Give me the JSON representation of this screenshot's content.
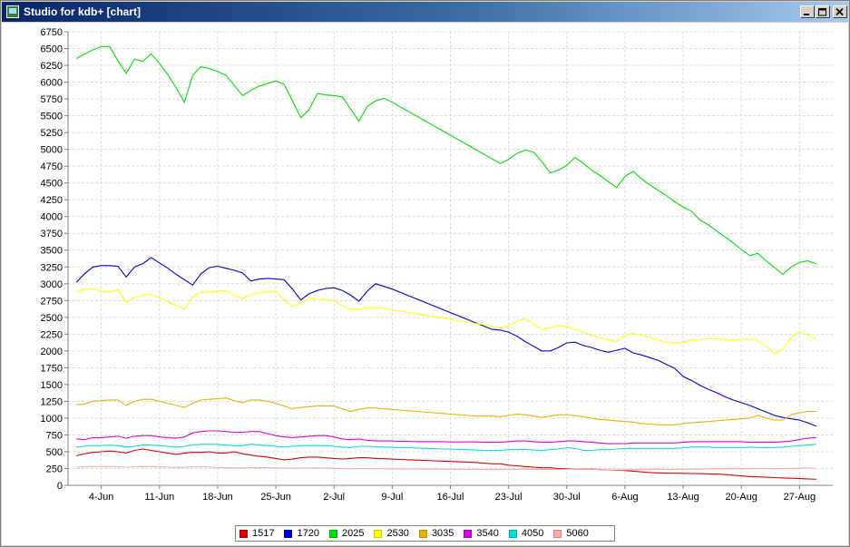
{
  "window": {
    "title": "Studio for kdb+ [chart]",
    "controls": {
      "minimize": "minimize-icon",
      "maximize": "maximize-icon",
      "close": "close-icon"
    }
  },
  "chart_data": {
    "type": "line",
    "title": "",
    "xlabel": "",
    "ylabel": "",
    "grid": true,
    "legend_position": "bottom",
    "ylim": [
      0,
      6750
    ],
    "y_ticks": [
      0,
      250,
      500,
      750,
      1000,
      1250,
      1500,
      1750,
      2000,
      2250,
      2500,
      2750,
      3000,
      3250,
      3500,
      3750,
      4000,
      4250,
      4500,
      4750,
      5000,
      5250,
      5500,
      5750,
      6000,
      6250,
      6500,
      6750
    ],
    "x_start": "2023-05-31",
    "x_end": "2023-08-31",
    "x_ticks": [
      {
        "date": "2023-06-04",
        "label": "4-Jun"
      },
      {
        "date": "2023-06-11",
        "label": "11-Jun"
      },
      {
        "date": "2023-06-18",
        "label": "18-Jun"
      },
      {
        "date": "2023-06-25",
        "label": "25-Jun"
      },
      {
        "date": "2023-07-02",
        "label": "2-Jul"
      },
      {
        "date": "2023-07-09",
        "label": "9-Jul"
      },
      {
        "date": "2023-07-16",
        "label": "16-Jul"
      },
      {
        "date": "2023-07-23",
        "label": "23-Jul"
      },
      {
        "date": "2023-07-30",
        "label": "30-Jul"
      },
      {
        "date": "2023-08-06",
        "label": "6-Aug"
      },
      {
        "date": "2023-08-13",
        "label": "13-Aug"
      },
      {
        "date": "2023-08-20",
        "label": "20-Aug"
      },
      {
        "date": "2023-08-27",
        "label": "27-Aug"
      }
    ],
    "x": [
      "2023-06-01",
      "2023-06-02",
      "2023-06-03",
      "2023-06-04",
      "2023-06-05",
      "2023-06-06",
      "2023-06-07",
      "2023-06-08",
      "2023-06-09",
      "2023-06-10",
      "2023-06-11",
      "2023-06-12",
      "2023-06-13",
      "2023-06-14",
      "2023-06-15",
      "2023-06-16",
      "2023-06-17",
      "2023-06-18",
      "2023-06-19",
      "2023-06-20",
      "2023-06-21",
      "2023-06-22",
      "2023-06-23",
      "2023-06-24",
      "2023-06-25",
      "2023-06-26",
      "2023-06-27",
      "2023-06-28",
      "2023-06-29",
      "2023-06-30",
      "2023-07-01",
      "2023-07-02",
      "2023-07-03",
      "2023-07-04",
      "2023-07-05",
      "2023-07-06",
      "2023-07-07",
      "2023-07-08",
      "2023-07-09",
      "2023-07-10",
      "2023-07-11",
      "2023-07-12",
      "2023-07-13",
      "2023-07-14",
      "2023-07-15",
      "2023-07-16",
      "2023-07-17",
      "2023-07-18",
      "2023-07-19",
      "2023-07-20",
      "2023-07-21",
      "2023-07-22",
      "2023-07-23",
      "2023-07-24",
      "2023-07-25",
      "2023-07-26",
      "2023-07-27",
      "2023-07-28",
      "2023-07-29",
      "2023-07-30",
      "2023-07-31",
      "2023-08-01",
      "2023-08-02",
      "2023-08-03",
      "2023-08-04",
      "2023-08-05",
      "2023-08-06",
      "2023-08-07",
      "2023-08-08",
      "2023-08-09",
      "2023-08-10",
      "2023-08-11",
      "2023-08-12",
      "2023-08-13",
      "2023-08-14",
      "2023-08-15",
      "2023-08-16",
      "2023-08-17",
      "2023-08-18",
      "2023-08-19",
      "2023-08-20",
      "2023-08-21",
      "2023-08-22",
      "2023-08-23",
      "2023-08-24",
      "2023-08-25",
      "2023-08-26",
      "2023-08-27",
      "2023-08-28",
      "2023-08-29"
    ],
    "series": [
      {
        "name": "1517",
        "color": "#e00000",
        "values": [
          440,
          470,
          490,
          500,
          510,
          500,
          480,
          520,
          540,
          520,
          500,
          480,
          460,
          480,
          490,
          490,
          500,
          480,
          480,
          500,
          470,
          450,
          430,
          420,
          400,
          380,
          390,
          410,
          420,
          420,
          410,
          400,
          390,
          400,
          410,
          410,
          400,
          395,
          390,
          385,
          380,
          375,
          370,
          365,
          360,
          355,
          350,
          345,
          340,
          330,
          320,
          320,
          300,
          290,
          280,
          270,
          260,
          260,
          250,
          250,
          240,
          240,
          240,
          235,
          230,
          225,
          220,
          210,
          200,
          190,
          185,
          180,
          180,
          178,
          176,
          174,
          170,
          168,
          160,
          150,
          140,
          130,
          125,
          120,
          115,
          110,
          105,
          100,
          95,
          90
        ]
      },
      {
        "name": "1720",
        "color": "#0000dd",
        "values": [
          3020,
          3150,
          3250,
          3270,
          3270,
          3260,
          3100,
          3250,
          3300,
          3390,
          3310,
          3230,
          3140,
          3060,
          2980,
          3150,
          3240,
          3260,
          3230,
          3200,
          3160,
          3040,
          3070,
          3080,
          3070,
          3060,
          2920,
          2760,
          2850,
          2900,
          2930,
          2940,
          2900,
          2830,
          2740,
          2890,
          3000,
          2960,
          2920,
          2870,
          2820,
          2770,
          2720,
          2670,
          2620,
          2570,
          2520,
          2470,
          2420,
          2370,
          2320,
          2310,
          2280,
          2220,
          2140,
          2070,
          2000,
          2000,
          2050,
          2120,
          2130,
          2080,
          2050,
          2010,
          1980,
          2010,
          2040,
          1970,
          1940,
          1900,
          1860,
          1800,
          1740,
          1620,
          1560,
          1490,
          1430,
          1380,
          1320,
          1270,
          1230,
          1190,
          1140,
          1090,
          1040,
          1010,
          990,
          970,
          930,
          880
        ]
      },
      {
        "name": "2025",
        "color": "#00dd00",
        "values": [
          6350,
          6420,
          6480,
          6530,
          6530,
          6320,
          6130,
          6340,
          6310,
          6420,
          6280,
          6110,
          5920,
          5700,
          6100,
          6230,
          6200,
          6160,
          6100,
          5950,
          5800,
          5880,
          5940,
          5980,
          6020,
          5970,
          5720,
          5470,
          5590,
          5830,
          5810,
          5800,
          5780,
          5600,
          5420,
          5640,
          5720,
          5760,
          5700,
          5630,
          5560,
          5490,
          5420,
          5350,
          5280,
          5210,
          5140,
          5070,
          5000,
          4930,
          4860,
          4790,
          4850,
          4940,
          4990,
          4960,
          4820,
          4650,
          4690,
          4760,
          4880,
          4790,
          4690,
          4610,
          4520,
          4430,
          4600,
          4670,
          4560,
          4470,
          4390,
          4310,
          4220,
          4140,
          4080,
          3950,
          3880,
          3790,
          3700,
          3610,
          3510,
          3420,
          3450,
          3340,
          3240,
          3140,
          3250,
          3320,
          3340,
          3300
        ]
      },
      {
        "name": "2530",
        "color": "#ffff00",
        "values": [
          2880,
          2920,
          2920,
          2890,
          2880,
          2910,
          2720,
          2800,
          2830,
          2840,
          2790,
          2730,
          2680,
          2620,
          2800,
          2870,
          2880,
          2890,
          2900,
          2830,
          2780,
          2840,
          2870,
          2880,
          2880,
          2760,
          2650,
          2720,
          2780,
          2770,
          2770,
          2750,
          2670,
          2620,
          2620,
          2640,
          2650,
          2630,
          2610,
          2590,
          2570,
          2550,
          2530,
          2510,
          2490,
          2470,
          2450,
          2430,
          2410,
          2390,
          2370,
          2340,
          2370,
          2440,
          2480,
          2400,
          2320,
          2340,
          2380,
          2360,
          2320,
          2280,
          2230,
          2200,
          2170,
          2140,
          2240,
          2260,
          2230,
          2200,
          2160,
          2130,
          2110,
          2130,
          2170,
          2160,
          2180,
          2180,
          2170,
          2160,
          2170,
          2180,
          2150,
          2070,
          1960,
          2030,
          2200,
          2280,
          2240,
          2170
        ]
      },
      {
        "name": "3035",
        "color": "#f0b000",
        "values": [
          1200,
          1210,
          1250,
          1260,
          1270,
          1270,
          1190,
          1250,
          1280,
          1280,
          1250,
          1220,
          1190,
          1160,
          1220,
          1270,
          1280,
          1290,
          1300,
          1260,
          1230,
          1270,
          1270,
          1250,
          1220,
          1180,
          1140,
          1160,
          1170,
          1180,
          1180,
          1180,
          1140,
          1100,
          1130,
          1150,
          1150,
          1140,
          1130,
          1120,
          1110,
          1100,
          1090,
          1080,
          1070,
          1060,
          1050,
          1040,
          1030,
          1030,
          1030,
          1020,
          1040,
          1060,
          1050,
          1030,
          1010,
          1030,
          1050,
          1050,
          1040,
          1020,
          1000,
          980,
          970,
          960,
          950,
          940,
          920,
          910,
          900,
          900,
          900,
          920,
          930,
          940,
          950,
          960,
          970,
          980,
          990,
          1000,
          1040,
          1000,
          970,
          970,
          1050,
          1080,
          1100,
          1100
        ]
      },
      {
        "name": "3540",
        "color": "#e000e0",
        "values": [
          690,
          680,
          710,
          710,
          720,
          730,
          700,
          730,
          740,
          740,
          720,
          710,
          700,
          720,
          780,
          800,
          810,
          810,
          800,
          790,
          790,
          800,
          800,
          770,
          740,
          720,
          710,
          720,
          730,
          740,
          740,
          720,
          690,
          680,
          690,
          670,
          660,
          660,
          660,
          655,
          655,
          650,
          650,
          650,
          650,
          645,
          645,
          645,
          645,
          640,
          640,
          640,
          650,
          660,
          660,
          650,
          640,
          640,
          650,
          660,
          660,
          650,
          640,
          630,
          620,
          620,
          620,
          630,
          630,
          630,
          630,
          630,
          630,
          640,
          650,
          650,
          650,
          650,
          650,
          650,
          650,
          640,
          640,
          640,
          640,
          650,
          660,
          680,
          700,
          710
        ]
      },
      {
        "name": "4050",
        "color": "#00e0e0",
        "values": [
          570,
          580,
          590,
          590,
          600,
          590,
          570,
          580,
          600,
          600,
          590,
          580,
          570,
          580,
          600,
          610,
          610,
          610,
          600,
          590,
          590,
          610,
          600,
          590,
          580,
          570,
          580,
          590,
          590,
          590,
          590,
          580,
          570,
          560,
          580,
          580,
          575,
          570,
          565,
          560,
          560,
          555,
          550,
          545,
          540,
          540,
          535,
          530,
          525,
          520,
          520,
          520,
          530,
          530,
          535,
          525,
          520,
          530,
          540,
          560,
          550,
          520,
          520,
          530,
          530,
          540,
          550,
          550,
          550,
          550,
          550,
          550,
          550,
          560,
          570,
          570,
          570,
          560,
          560,
          560,
          560,
          570,
          560,
          560,
          560,
          570,
          580,
          590,
          600,
          610
        ]
      },
      {
        "name": "5060",
        "color": "#ffa8a8",
        "values": [
          270,
          275,
          280,
          280,
          278,
          276,
          270,
          275,
          280,
          278,
          274,
          270,
          265,
          268,
          275,
          275,
          270,
          265,
          260,
          260,
          258,
          262,
          265,
          262,
          258,
          255,
          254,
          256,
          258,
          258,
          256,
          254,
          250,
          248,
          250,
          250,
          248,
          246,
          245,
          244,
          243,
          242,
          241,
          240,
          240,
          238,
          238,
          236,
          236,
          235,
          234,
          234,
          236,
          238,
          240,
          238,
          236,
          236,
          238,
          240,
          240,
          238,
          236,
          234,
          232,
          230,
          230,
          232,
          234,
          234,
          235,
          236,
          236,
          238,
          240,
          242,
          244,
          246,
          246,
          246,
          246,
          248,
          248,
          248,
          248,
          250,
          252,
          254,
          256,
          256
        ]
      }
    ]
  }
}
